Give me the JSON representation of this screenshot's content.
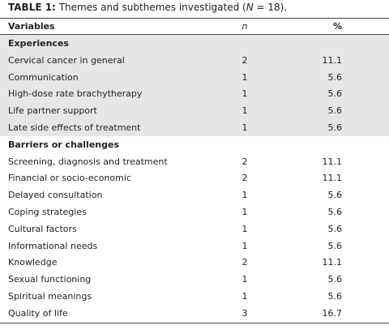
{
  "caption": {
    "label": "TABLE 1:",
    "text_before": "Themes and subthemes investigated (",
    "variable": "N",
    "text_after": " = 18)."
  },
  "table": {
    "headers": [
      "Variables",
      "n",
      "%"
    ],
    "sections": [
      {
        "title": "Experiences",
        "rows": [
          [
            "Cervical cancer in general",
            2,
            11.1
          ],
          [
            "Communication",
            1,
            5.6
          ],
          [
            "High-dose rate brachytherapy",
            1,
            5.6
          ],
          [
            "Life partner support",
            1,
            5.6
          ],
          [
            "Late side effects of treatment",
            1,
            5.6
          ]
        ]
      },
      {
        "title": "Barriers or challenges",
        "rows": [
          [
            "Screening, diagnosis and treatment",
            2,
            11.1
          ],
          [
            "Financial or socio-economic",
            2,
            11.1
          ],
          [
            "Delayed consultation",
            1,
            5.6
          ],
          [
            "Coping strategies",
            1,
            5.6
          ],
          [
            "Cultural factors",
            1,
            5.6
          ],
          [
            "Informational needs",
            1,
            5.6
          ],
          [
            "Knowledge",
            2,
            11.1
          ],
          [
            "Sexual functioning",
            1,
            5.6
          ],
          [
            "Spiritual meanings",
            1,
            5.6
          ],
          [
            "Quality of life",
            3,
            16.7
          ]
        ]
      }
    ]
  }
}
